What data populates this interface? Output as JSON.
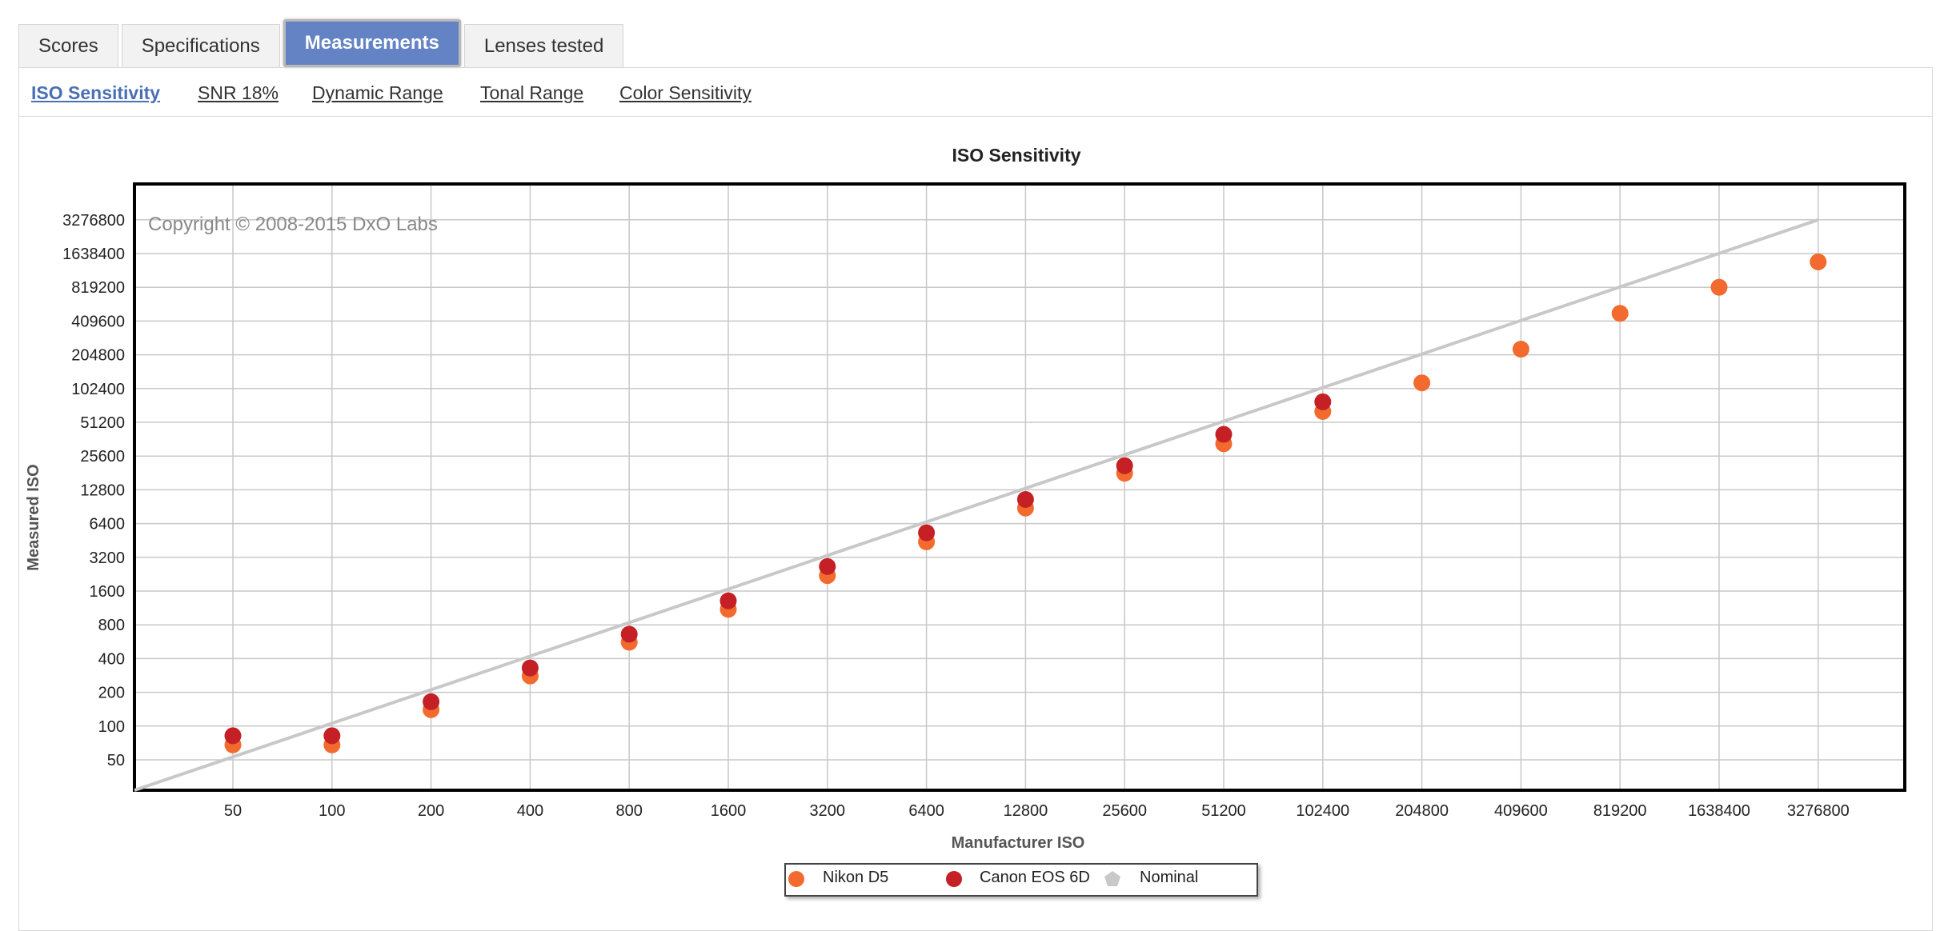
{
  "tabs": [
    {
      "label": "Scores",
      "active": false
    },
    {
      "label": "Specifications",
      "active": false
    },
    {
      "label": "Measurements",
      "active": true
    },
    {
      "label": "Lenses tested",
      "active": false
    }
  ],
  "subnav": [
    {
      "label": "ISO Sensitivity",
      "active": true
    },
    {
      "label": "SNR 18%",
      "active": false
    },
    {
      "label": "Dynamic Range",
      "active": false
    },
    {
      "label": "Tonal Range",
      "active": false
    },
    {
      "label": "Color Sensitivity",
      "active": false
    }
  ],
  "chart_data": {
    "type": "scatter",
    "title": "ISO Sensitivity",
    "xlabel": "Manufacturer ISO",
    "ylabel": "Measured ISO",
    "copyright": "Copyright © 2008-2015 DxO Labs",
    "x_scale": "log2",
    "y_scale": "log2",
    "categories": [
      "50",
      "100",
      "200",
      "400",
      "800",
      "1600",
      "3200",
      "6400",
      "12800",
      "25600",
      "51200",
      "102400",
      "204800",
      "409600",
      "819200",
      "1638400",
      "3276800"
    ],
    "y_ticks": [
      "50",
      "100",
      "200",
      "400",
      "800",
      "1600",
      "3200",
      "6400",
      "12800",
      "25600",
      "51200",
      "102400",
      "204800",
      "409600",
      "819200",
      "1638400",
      "3276800"
    ],
    "grid": true,
    "legend_position": "bottom-center",
    "series": [
      {
        "name": "Nikon D5",
        "color": "#f26a2e",
        "marker": "circle",
        "x": [
          50,
          100,
          200,
          400,
          800,
          1600,
          3200,
          6400,
          12800,
          25600,
          51200,
          102400,
          204800,
          409600,
          819200,
          1638400,
          3276800
        ],
        "y": [
          68,
          68,
          140,
          280,
          560,
          1100,
          2200,
          4400,
          8800,
          18000,
          33000,
          64000,
          115000,
          230000,
          480000,
          820000,
          1380000
        ]
      },
      {
        "name": "Canon EOS 6D",
        "color": "#c42026",
        "marker": "circle",
        "x": [
          50,
          100,
          200,
          400,
          800,
          1600,
          3200,
          6400,
          12800,
          25600,
          51200,
          102400
        ],
        "y": [
          82,
          82,
          165,
          330,
          660,
          1310,
          2650,
          5300,
          10500,
          21000,
          40000,
          78000
        ]
      },
      {
        "name": "Nominal",
        "color": "#c8c8c8",
        "marker": "pentagon",
        "line": true,
        "x": [
          25,
          3276800
        ],
        "y": [
          25,
          3276800
        ]
      }
    ]
  }
}
